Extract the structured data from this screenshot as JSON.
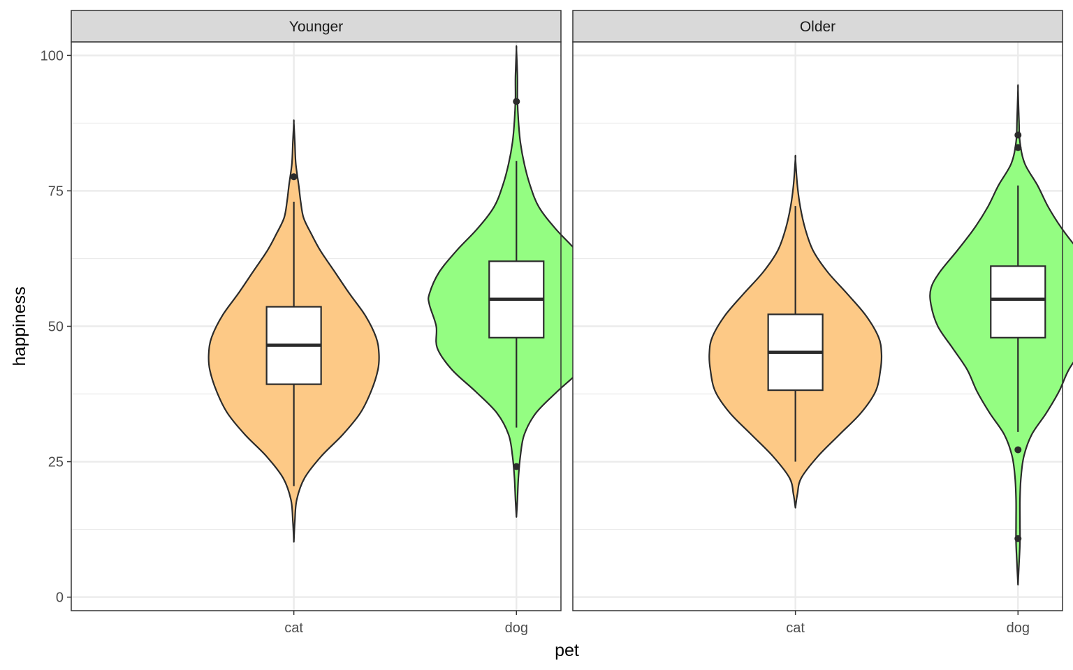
{
  "chart_data": {
    "type": "violin",
    "xlabel": "pet",
    "ylabel": "happiness",
    "ylim": [
      -2.5,
      102.5
    ],
    "yticks": [
      0,
      25,
      50,
      75,
      100
    ],
    "y_tick_labels": [
      "0",
      "25",
      "50",
      "75",
      "100"
    ],
    "categories": [
      "cat",
      "dog"
    ],
    "grid": true,
    "legend": "none",
    "colors": {
      "cat": "#fdc986",
      "dog": "#94fd82",
      "outline": "#2b2b2b",
      "box_fill": "#ffffff",
      "strip_bg": "#d9d9d9",
      "grid": "#ebebeb"
    },
    "panels": [
      {
        "strip_label": "Younger",
        "groups": [
          {
            "category": "cat",
            "box": {
              "min": 20.5,
              "q1": 39.3,
              "median": 46.5,
              "q3": 53.6,
              "max": 73.0
            },
            "outliers": [
              77.6
            ],
            "violin": {
              "y": [
                10.2,
                14,
                18,
                22,
                26,
                30,
                34,
                38,
                42,
                45,
                48,
                52,
                56,
                60,
                64,
                67,
                70,
                73,
                76,
                80,
                84,
                87.6
              ],
              "halfwidth": [
                0,
                0.01,
                0.03,
                0.11,
                0.28,
                0.5,
                0.68,
                0.79,
                0.86,
                0.87,
                0.84,
                0.73,
                0.57,
                0.42,
                0.27,
                0.18,
                0.1,
                0.07,
                0.05,
                0.02,
                0.01,
                0
              ]
            }
          },
          {
            "category": "dog",
            "box": {
              "min": 31.3,
              "q1": 47.9,
              "median": 55.0,
              "q3": 62.0,
              "max": 80.5
            },
            "outliers": [
              91.5,
              24.1
            ],
            "violin": {
              "y": [
                14.8,
                18,
                22,
                26,
                30,
                34,
                38,
                42,
                46,
                50,
                54,
                56,
                60,
                64,
                68,
                72,
                76,
                80,
                84,
                88,
                92,
                96,
                101.1
              ],
              "halfwidth": [
                0,
                0.01,
                0.02,
                0.04,
                0.08,
                0.2,
                0.42,
                0.66,
                0.81,
                0.82,
                0.89,
                0.89,
                0.79,
                0.61,
                0.4,
                0.23,
                0.14,
                0.08,
                0.04,
                0.02,
                0.01,
                0.01,
                0
              ]
            }
          }
        ]
      },
      {
        "strip_label": "Older",
        "groups": [
          {
            "category": "cat",
            "box": {
              "min": 25.0,
              "q1": 38.2,
              "median": 45.2,
              "q3": 52.2,
              "max": 72.2
            },
            "outliers": [],
            "violin": {
              "y": [
                16.5,
                19,
                22,
                26,
                30,
                34,
                38,
                42,
                45,
                48,
                52,
                56,
                60,
                64,
                68,
                72,
                76,
                80.9
              ],
              "halfwidth": [
                0,
                0.02,
                0.06,
                0.23,
                0.45,
                0.67,
                0.82,
                0.87,
                0.88,
                0.85,
                0.72,
                0.53,
                0.33,
                0.18,
                0.1,
                0.05,
                0.02,
                0
              ]
            }
          },
          {
            "category": "dog",
            "box": {
              "min": 30.5,
              "q1": 47.9,
              "median": 55.0,
              "q3": 61.1,
              "max": 76.0
            },
            "outliers": [
              85.3,
              83.0,
              27.2,
              10.8
            ],
            "violin": {
              "y": [
                2.3,
                6,
                10,
                14,
                18,
                22,
                26,
                30,
                34,
                38,
                42,
                46,
                50,
                54,
                57,
                60,
                64,
                68,
                72,
                76,
                80,
                84,
                88,
                93.8
              ],
              "halfwidth": [
                0,
                0.01,
                0.02,
                0.02,
                0.02,
                0.03,
                0.06,
                0.14,
                0.29,
                0.42,
                0.52,
                0.67,
                0.82,
                0.89,
                0.89,
                0.8,
                0.62,
                0.45,
                0.31,
                0.2,
                0.07,
                0.02,
                0.01,
                0
              ]
            }
          }
        ]
      }
    ]
  }
}
